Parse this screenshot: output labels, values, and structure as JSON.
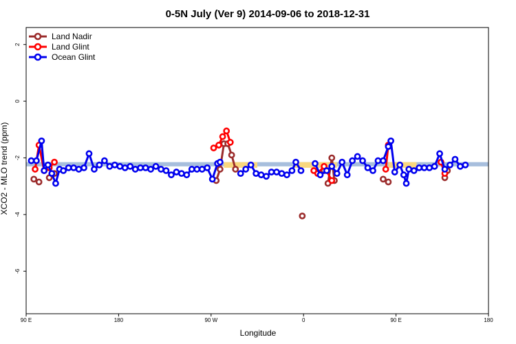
{
  "chart_data": {
    "type": "line",
    "title": "0-5N July (Ver 9)   2014-09-06 to 2018-12-31",
    "xlabel": "Longitude",
    "ylabel": "XCO2 - MLO trend (ppm)",
    "xlim": [
      90,
      450
    ],
    "ylim": [
      -7.5,
      2.6
    ],
    "x_ticks": [
      {
        "value": 90,
        "label": "90 E"
      },
      {
        "value": 162,
        "label": "180"
      },
      {
        "value": 234,
        "label": "90 W"
      },
      {
        "value": 306,
        "label": "0"
      },
      {
        "value": 378,
        "label": "90 E"
      },
      {
        "value": 450,
        "label": "180"
      }
    ],
    "y_ticks": [
      {
        "value": 2,
        "label": "2"
      },
      {
        "value": 0,
        "label": "0"
      },
      {
        "value": -2,
        "label": "-2"
      },
      {
        "value": -4,
        "label": "-4"
      },
      {
        "value": -6,
        "label": "-6"
      }
    ],
    "legend_position": "top-left",
    "bands": [
      {
        "color": "#a7bedd",
        "x0": 90,
        "x1": 450,
        "y0": -2.3,
        "y1": -2.15
      },
      {
        "color": "#f9d77e",
        "x0": 244,
        "x1": 270,
        "y0": -2.35,
        "y1": -2.15
      },
      {
        "color": "#f9d77e",
        "x0": 299,
        "x1": 314,
        "y0": -2.35,
        "y1": -2.15
      },
      {
        "color": "#f9d77e",
        "x0": 312,
        "x1": 332,
        "y0": -2.35,
        "y1": -2.15
      },
      {
        "color": "#f9d77e",
        "x0": 372,
        "x1": 394,
        "y0": -2.35,
        "y1": -2.15
      }
    ],
    "series": [
      {
        "name": "Land Nadir",
        "color": "#9b2c2c",
        "segments": [
          [
            [
              96,
              -2.75
            ],
            [
              100,
              -2.85
            ]
          ],
          [
            [
              108,
              -2.7
            ],
            [
              112,
              -2.55
            ]
          ],
          [
            [
              238,
              -2.8
            ],
            [
              241,
              -2.4
            ],
            [
              244,
              -1.5
            ],
            [
              247,
              -1.5
            ],
            [
              250,
              -1.9
            ],
            [
              253,
              -2.4
            ]
          ],
          [
            [
              325,
              -2.9
            ],
            [
              328,
              -2.0
            ],
            [
              330,
              -2.8
            ]
          ],
          [
            [
              416,
              -2.7
            ],
            [
              418,
              -2.45
            ]
          ],
          [
            [
              322,
              -2.45
            ]
          ],
          [
            [
              305,
              -4.05
            ]
          ],
          [
            [
              368,
              -2.75
            ],
            [
              372,
              -2.85
            ]
          ]
        ]
      },
      {
        "name": "Land Glint",
        "color": "#ff0000",
        "segments": [
          [
            [
              97,
              -2.4
            ],
            [
              100,
              -1.55
            ],
            [
              104,
              -2.45
            ],
            [
              108,
              -2.35
            ],
            [
              112,
              -2.15
            ]
          ],
          [
            [
              236,
              -1.65
            ],
            [
              240,
              -1.55
            ],
            [
              243,
              -1.25
            ],
            [
              246,
              -1.05
            ],
            [
              249,
              -1.45
            ]
          ],
          [
            [
              314,
              -2.45
            ],
            [
              317,
              -2.55
            ],
            [
              322,
              -2.3
            ],
            [
              328,
              -2.8
            ]
          ],
          [
            [
              372,
              -1.55
            ],
            [
              370,
              -2.4
            ]
          ],
          [
            [
              413,
              -2.15
            ],
            [
              416,
              -2.55
            ]
          ]
        ]
      },
      {
        "name": "Ocean Glint",
        "color": "#0000ee",
        "segments": [
          [
            [
              94,
              -2.1
            ],
            [
              98,
              -2.1
            ],
            [
              102,
              -1.4
            ],
            [
              104,
              -2.45
            ],
            [
              107,
              -2.25
            ],
            [
              110,
              -2.55
            ],
            [
              113,
              -2.9
            ],
            [
              116,
              -2.4
            ],
            [
              119,
              -2.45
            ],
            [
              123,
              -2.35
            ],
            [
              127,
              -2.35
            ],
            [
              131,
              -2.4
            ],
            [
              135,
              -2.35
            ],
            [
              139,
              -1.85
            ],
            [
              143,
              -2.4
            ],
            [
              147,
              -2.25
            ],
            [
              151,
              -2.1
            ],
            [
              155,
              -2.3
            ],
            [
              159,
              -2.25
            ],
            [
              163,
              -2.3
            ],
            [
              167,
              -2.35
            ],
            [
              171,
              -2.3
            ],
            [
              175,
              -2.4
            ],
            [
              179,
              -2.35
            ],
            [
              183,
              -2.35
            ],
            [
              187,
              -2.4
            ],
            [
              191,
              -2.3
            ],
            [
              195,
              -2.4
            ],
            [
              199,
              -2.45
            ],
            [
              203,
              -2.6
            ],
            [
              207,
              -2.5
            ],
            [
              211,
              -2.55
            ],
            [
              215,
              -2.6
            ],
            [
              219,
              -2.4
            ],
            [
              223,
              -2.4
            ],
            [
              227,
              -2.4
            ],
            [
              231,
              -2.35
            ],
            [
              235,
              -2.75
            ],
            [
              239,
              -2.2
            ],
            [
              241,
              -2.15
            ]
          ],
          [
            [
              257,
              -2.55
            ],
            [
              261,
              -2.4
            ],
            [
              265,
              -2.25
            ],
            [
              269,
              -2.55
            ],
            [
              273,
              -2.6
            ],
            [
              277,
              -2.65
            ],
            [
              281,
              -2.5
            ],
            [
              285,
              -2.5
            ],
            [
              289,
              -2.55
            ],
            [
              293,
              -2.6
            ],
            [
              297,
              -2.45
            ],
            [
              300,
              -2.15
            ],
            [
              304,
              -2.45
            ]
          ],
          [
            [
              315,
              -2.2
            ],
            [
              319,
              -2.6
            ],
            [
              324,
              -2.45
            ],
            [
              328,
              -2.3
            ],
            [
              332,
              -2.55
            ],
            [
              336,
              -2.15
            ],
            [
              340,
              -2.6
            ],
            [
              344,
              -2.1
            ],
            [
              348,
              -1.95
            ],
            [
              352,
              -2.1
            ],
            [
              356,
              -2.35
            ],
            [
              360,
              -2.45
            ],
            [
              364,
              -2.1
            ],
            [
              368,
              -2.1
            ],
            [
              372,
              -1.6
            ],
            [
              374,
              -1.4
            ],
            [
              377,
              -2.5
            ],
            [
              381,
              -2.25
            ],
            [
              384,
              -2.6
            ],
            [
              386,
              -2.9
            ],
            [
              388,
              -2.4
            ],
            [
              392,
              -2.45
            ],
            [
              396,
              -2.35
            ],
            [
              400,
              -2.35
            ],
            [
              404,
              -2.35
            ],
            [
              408,
              -2.3
            ],
            [
              412,
              -1.85
            ],
            [
              416,
              -2.4
            ],
            [
              420,
              -2.25
            ],
            [
              424,
              -2.05
            ],
            [
              428,
              -2.3
            ],
            [
              432,
              -2.25
            ]
          ]
        ]
      }
    ]
  }
}
